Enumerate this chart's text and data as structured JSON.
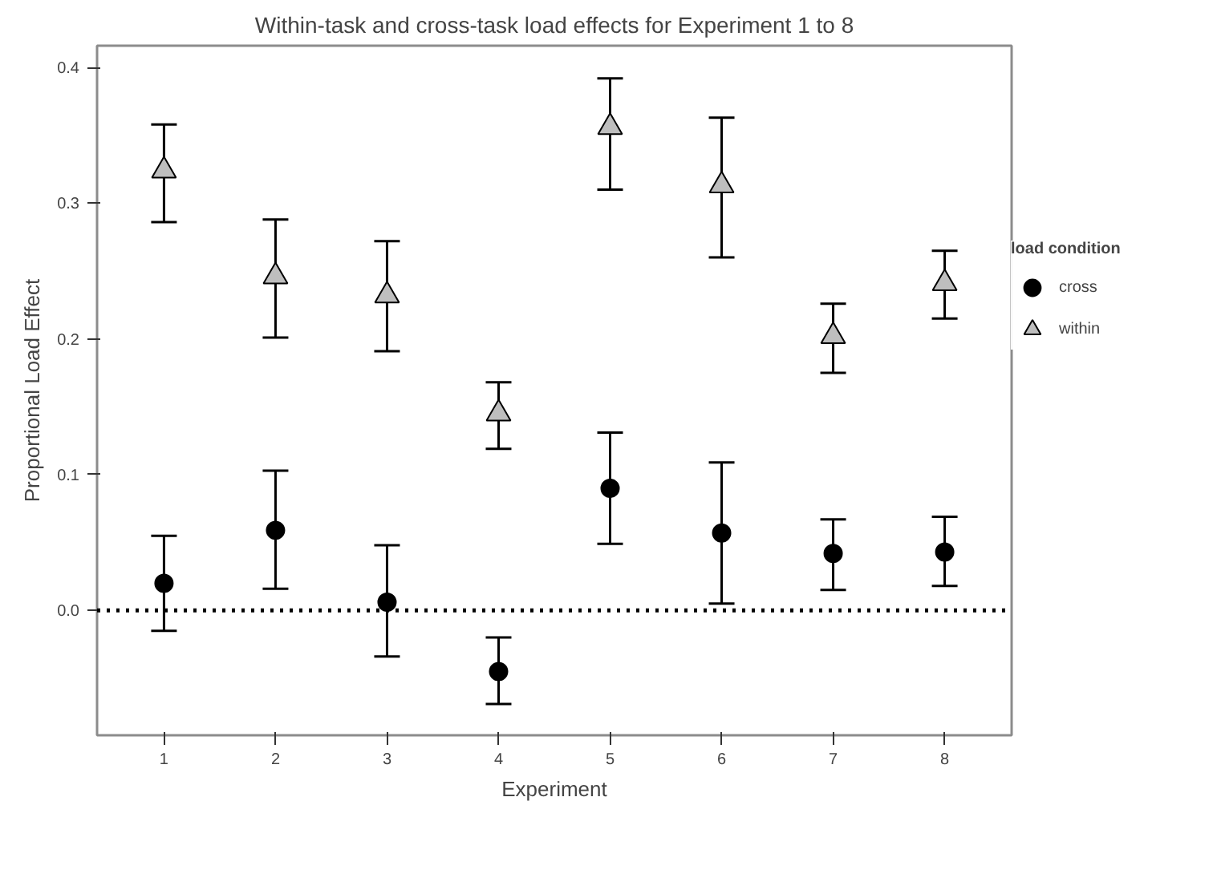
{
  "chart_data": {
    "type": "scatter",
    "title": "Within-task and cross-task load effects for Experiment 1 to 8",
    "xlabel": "Experiment",
    "ylabel": "Proportional Load Effect",
    "legend_title": "load condition",
    "categories": [
      "1",
      "2",
      "3",
      "4",
      "5",
      "6",
      "7",
      "8"
    ],
    "series": [
      {
        "name": "cross",
        "color": "#000000",
        "marker": "circle",
        "values": [
          0.02,
          0.059,
          0.006,
          -0.045,
          0.09,
          0.057,
          0.042,
          0.043
        ],
        "errors": [
          [
            -0.015,
            0.055
          ],
          [
            0.016,
            0.103
          ],
          [
            -0.034,
            0.048
          ],
          [
            -0.069,
            -0.02
          ],
          [
            0.049,
            0.131
          ],
          [
            0.005,
            0.109
          ],
          [
            0.015,
            0.067
          ],
          [
            0.018,
            0.069
          ]
        ]
      },
      {
        "name": "within",
        "color": "#bebebe",
        "marker": "triangle",
        "values": [
          0.324,
          0.246,
          0.232,
          0.145,
          0.356,
          0.313,
          0.202,
          0.241
        ],
        "errors": [
          [
            0.286,
            0.358
          ],
          [
            0.201,
            0.288
          ],
          [
            0.191,
            0.272
          ],
          [
            0.119,
            0.168
          ],
          [
            0.31,
            0.392
          ],
          [
            0.26,
            0.363
          ],
          [
            0.175,
            0.226
          ],
          [
            0.215,
            0.265
          ]
        ]
      }
    ],
    "ylim": [
      -0.092,
      0.416
    ],
    "yticks": [
      {
        "value": 0,
        "label": "0.0"
      },
      0.1,
      0.2,
      0.3,
      0.4
    ],
    "ref_lines": [
      {
        "axis": "y",
        "value": 0,
        "line_style": "dotted",
        "color": "#000000"
      }
    ],
    "grid": false,
    "legend": "right"
  }
}
